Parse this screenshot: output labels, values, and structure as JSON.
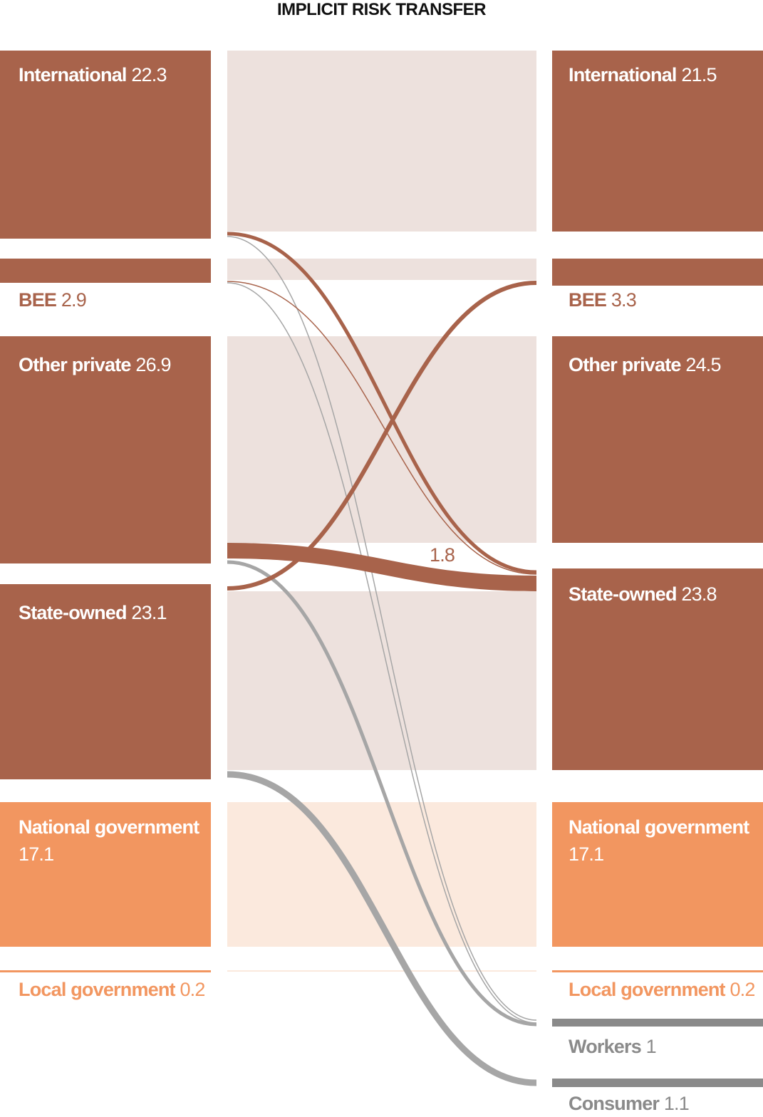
{
  "title": "IMPLICIT RISK TRANSFER",
  "colors": {
    "private": "#a8634b",
    "private_band": "#ede1dd",
    "government": "#f29660",
    "government_band": "#fbe9dd",
    "other": "#8a8a8a",
    "flow_gray": "#a6a6a6",
    "white": "#ffffff"
  },
  "left_nodes": [
    {
      "id": "international",
      "name": "International",
      "value": "22.3",
      "group": "private"
    },
    {
      "id": "bee",
      "name": "BEE",
      "value": "2.9",
      "group": "private"
    },
    {
      "id": "other-private",
      "name": "Other private",
      "value": "26.9",
      "group": "private"
    },
    {
      "id": "state-owned",
      "name": "State-owned",
      "value": "23.1",
      "group": "private"
    },
    {
      "id": "national-government",
      "name": "National government",
      "value": "17.1",
      "group": "government"
    },
    {
      "id": "local-government",
      "name": "Local government",
      "value": "0.2",
      "group": "government"
    }
  ],
  "right_nodes": [
    {
      "id": "international",
      "name": "International",
      "value": "21.5",
      "group": "private"
    },
    {
      "id": "bee",
      "name": "BEE",
      "value": "3.3",
      "group": "private"
    },
    {
      "id": "other-private",
      "name": "Other private",
      "value": "24.5",
      "group": "private"
    },
    {
      "id": "state-owned",
      "name": "State-owned",
      "value": "23.8",
      "group": "private"
    },
    {
      "id": "national-government",
      "name": "National government",
      "value": "17.1",
      "group": "government"
    },
    {
      "id": "local-government",
      "name": "Local government",
      "value": "0.2",
      "group": "government"
    },
    {
      "id": "workers",
      "name": "Workers",
      "value": "1",
      "group": "other"
    },
    {
      "id": "consumer",
      "name": "Consumer",
      "value": "1.1",
      "group": "other"
    }
  ],
  "flows": [
    {
      "from": "international",
      "to": "state-owned",
      "color": "private"
    },
    {
      "from": "international",
      "to": "workers",
      "color": "gray"
    },
    {
      "from": "bee",
      "to": "state-owned",
      "color": "private"
    },
    {
      "from": "bee",
      "to": "workers",
      "color": "gray"
    },
    {
      "from": "other-private",
      "to": "state-owned",
      "color": "private",
      "value": "1.8"
    },
    {
      "from": "other-private",
      "to": "workers",
      "color": "gray"
    },
    {
      "from": "state-owned",
      "to": "bee",
      "color": "private"
    },
    {
      "from": "state-owned",
      "to": "consumer",
      "color": "gray"
    }
  ]
}
